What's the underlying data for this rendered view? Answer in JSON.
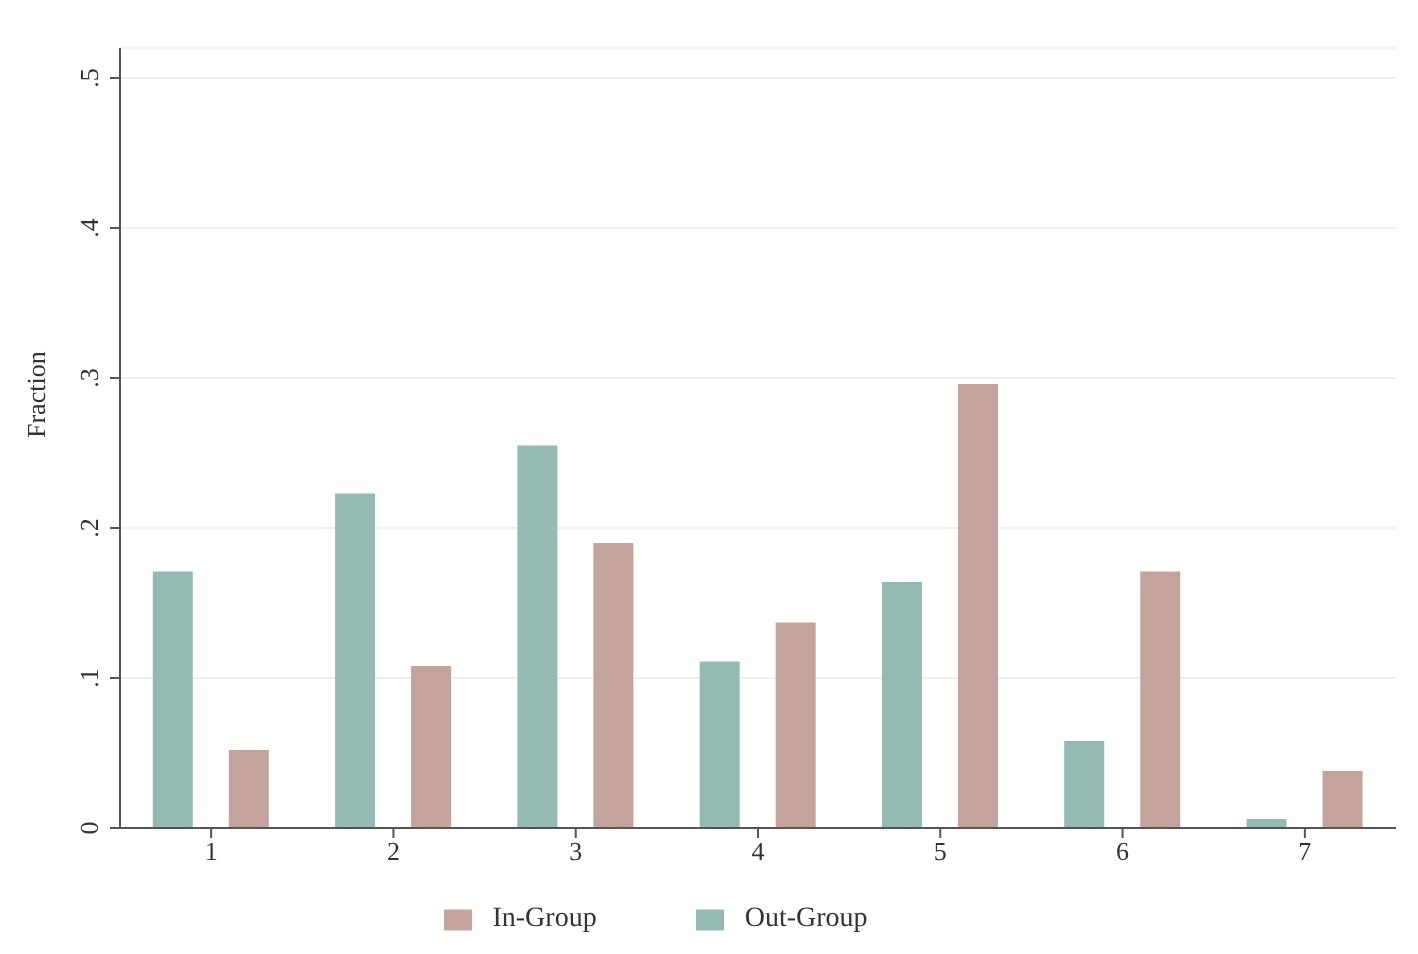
{
  "chart_data": {
    "type": "bar",
    "ylabel": "Fraction",
    "categories": [
      "1",
      "2",
      "3",
      "4",
      "5",
      "6",
      "7"
    ],
    "series": [
      {
        "name": "Out-Group",
        "color": "#93bab3",
        "values": [
          0.171,
          0.223,
          0.255,
          0.111,
          0.164,
          0.058,
          0.006
        ]
      },
      {
        "name": "In-Group",
        "color": "#c4a39c",
        "values": [
          0.052,
          0.108,
          0.19,
          0.137,
          0.296,
          0.171,
          0.038
        ]
      }
    ],
    "ylim": [
      0,
      0.52
    ],
    "yticks": [
      0,
      {
        "value": 0.1,
        "label": ".1"
      },
      {
        "value": 0.2,
        "label": ".2"
      },
      {
        "value": 0.3,
        "label": ".3"
      },
      {
        "value": 0.4,
        "label": ".4"
      },
      {
        "value": 0.5,
        "label": ".5"
      }
    ],
    "grid": "y",
    "legend": "bottom"
  }
}
